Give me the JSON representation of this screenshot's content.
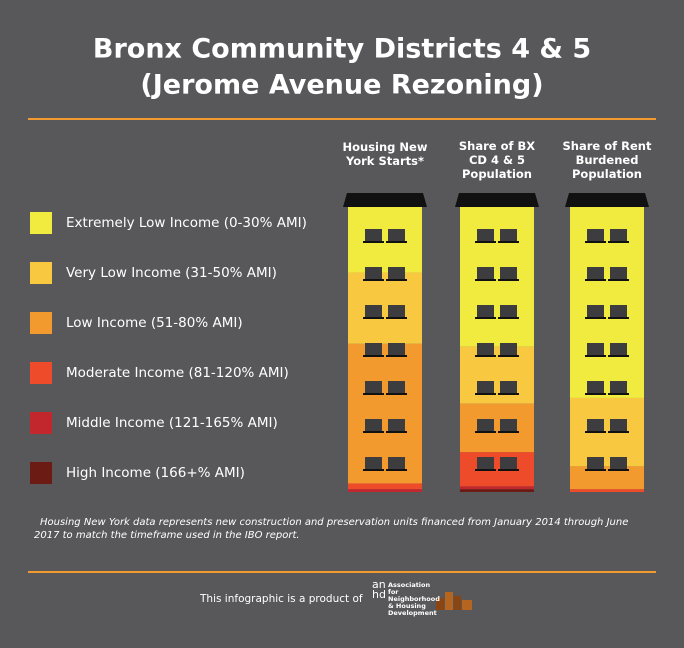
{
  "chart_data": {
    "type": "bar",
    "stacked": true,
    "title": "Bronx Community Districts 4 & 5",
    "subtitle": "(Jerome Avenue Rezoning)",
    "categories": [
      "Housing New York Starts*",
      "Share of BX CD 4 & 5 Population",
      "Share of Rent Burdened Population"
    ],
    "ylim": [
      0,
      100
    ],
    "series": [
      {
        "name": "Extremely Low Income (0-30% AMI)",
        "color": "#f1ea3f",
        "values": [
          23,
          49,
          67
        ]
      },
      {
        "name": "Very Low Income (31-50% AMI)",
        "color": "#f7c840",
        "values": [
          25,
          20,
          24
        ]
      },
      {
        "name": "Low Income (51-80% AMI)",
        "color": "#f29a2e",
        "values": [
          49,
          17,
          8
        ]
      },
      {
        "name": "Moderate Income (81-120% AMI)",
        "color": "#ee4b2b",
        "values": [
          2,
          12,
          1
        ]
      },
      {
        "name": "Middle Income (121-165% AMI)",
        "color": "#c1272d",
        "values": [
          1,
          1,
          0
        ]
      },
      {
        "name": "High Income (166+% AMI)",
        "color": "#6b1a14",
        "values": [
          0,
          1,
          0
        ]
      }
    ],
    "footnote": "Housing New York data represents new construction and preservation units financed from January 2014 through June 2017 to match the timeframe used in the IBO report.",
    "credit": "This infographic is a product of",
    "logo_letters": "anhd",
    "logo_name": "Association for Neighborhood & Housing Development"
  }
}
